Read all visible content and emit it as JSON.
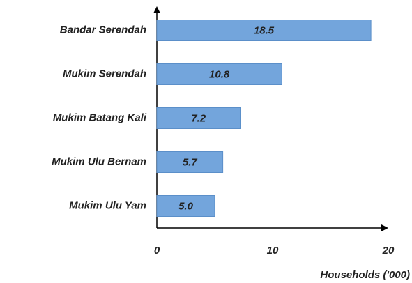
{
  "chart_data": {
    "type": "hbar",
    "categories": [
      "Bandar Serendah",
      "Mukim Serendah",
      "Mukim Batang Kali",
      "Mukim Ulu Bernam",
      "Mukim Ulu Yam"
    ],
    "values": [
      18.5,
      10.8,
      7.2,
      5.7,
      5.0
    ],
    "value_labels": [
      "18.5",
      "10.8",
      "7.2",
      "5.7",
      "5.0"
    ],
    "color": "#73a5dc",
    "xlim": [
      0,
      20
    ],
    "xticks": [
      0,
      10,
      20
    ],
    "xlabel": "Households ('000)"
  }
}
